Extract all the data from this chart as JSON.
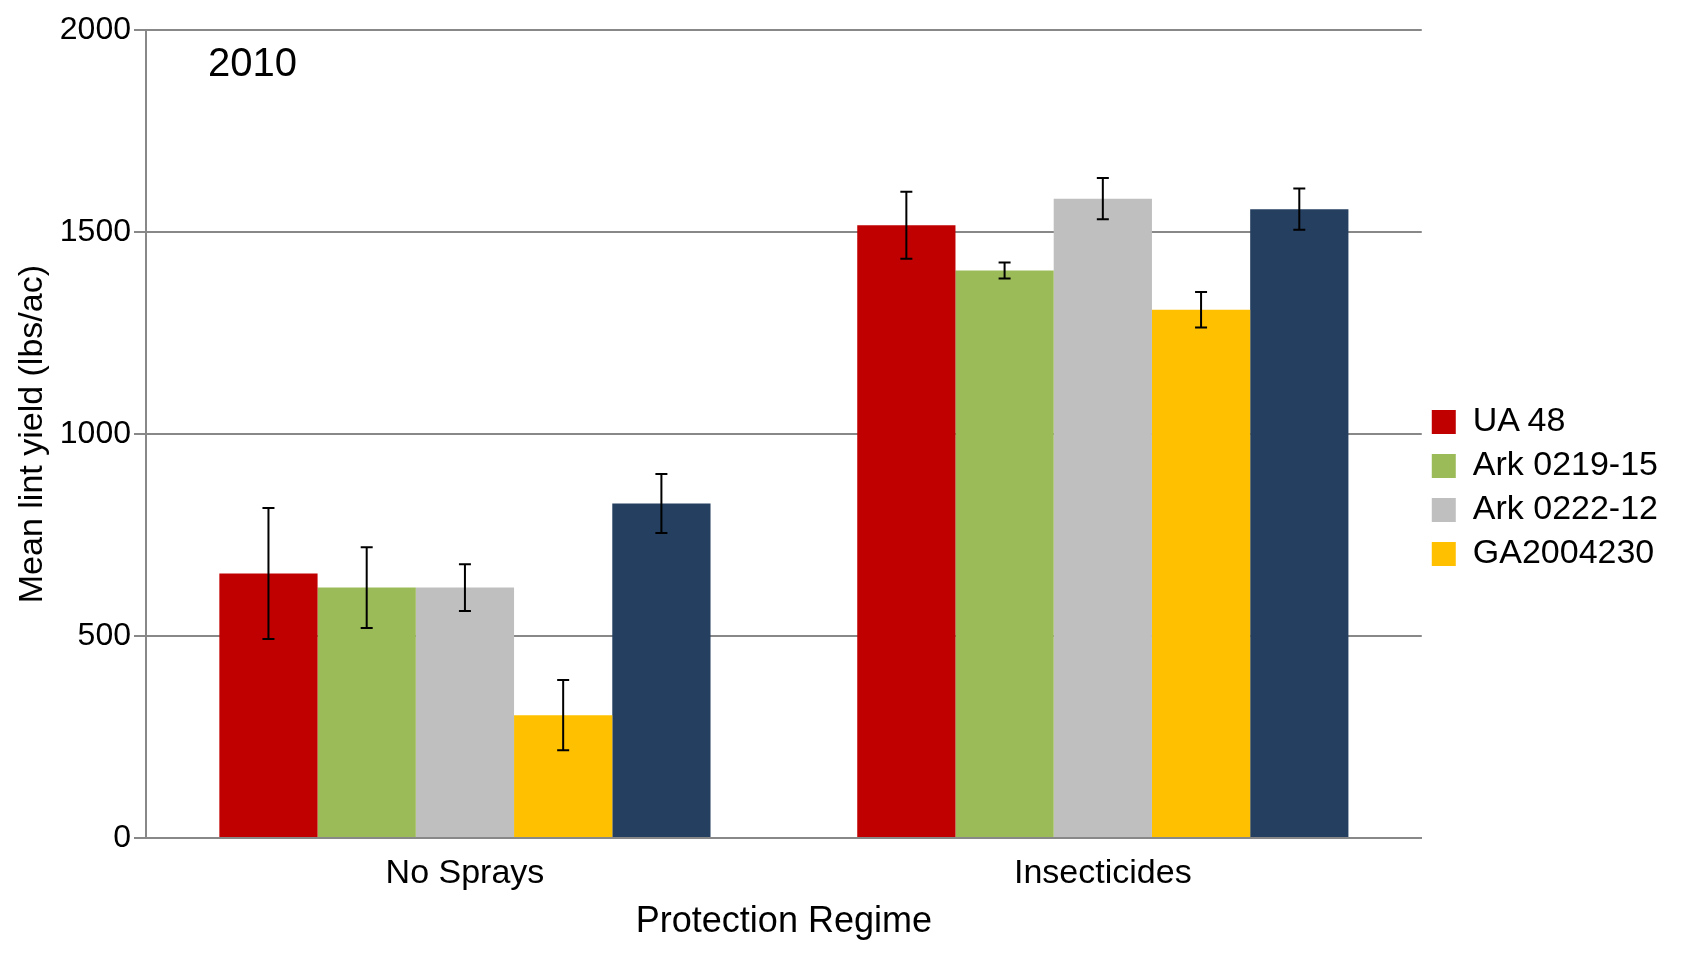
{
  "chart_data": {
    "type": "bar",
    "xlabel": "Protection Regime",
    "ylabel": "Mean lint yield (lbs/ac)",
    "categories": [
      "No Sprays",
      "Insecticides"
    ],
    "series": [
      {
        "name": "UA 48",
        "color": "#c00000",
        "values": [
          655,
          1517
        ],
        "errors": [
          162,
          83
        ]
      },
      {
        "name": "Ark 0219-15",
        "color": "#9bbb59",
        "values": [
          620,
          1405
        ],
        "errors": [
          100,
          20
        ]
      },
      {
        "name": "Ark 0222-12",
        "color": "#bfbfbf",
        "values": [
          620,
          1583
        ],
        "errors": [
          58,
          51
        ]
      },
      {
        "name": "GA2004230",
        "color": "#ffc000",
        "values": [
          304,
          1308
        ],
        "errors": [
          87,
          44
        ]
      },
      {
        "color": "#243f60",
        "values": [
          828,
          1557
        ],
        "errors": [
          73,
          51
        ]
      }
    ],
    "ylim": [
      0,
      2000
    ],
    "yticks": [
      0,
      500,
      1000,
      1500,
      2000
    ],
    "grid": "y",
    "legend": "right",
    "annotations": [
      "2010"
    ]
  }
}
